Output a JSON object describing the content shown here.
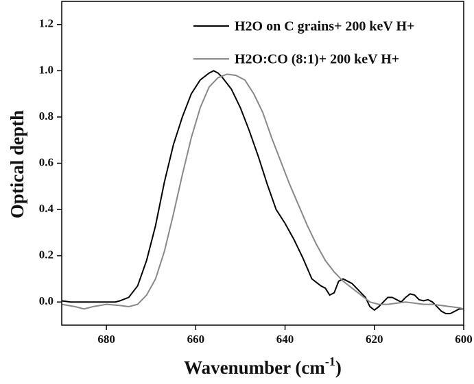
{
  "chart_data": {
    "type": "line",
    "x_label": [
      "Wavenumber (cm",
      "-1",
      ")"
    ],
    "y_label": "Optical depth",
    "xlim": [
      690,
      600
    ],
    "xticks": [
      680,
      660,
      640,
      620,
      600
    ],
    "ylim": [
      -0.1,
      1.3
    ],
    "yticks": [
      {
        "value": 0,
        "label": "0.0"
      },
      0.2,
      0.4,
      0.6,
      0.8,
      {
        "value": 1,
        "label": "1.0"
      },
      1.2
    ],
    "legend": "top-right",
    "series": [
      {
        "name": "H2O on C grains+ 200 keV H+",
        "color": "#000000",
        "x": [
          690,
          688,
          686,
          684,
          682,
          680,
          678,
          677,
          675,
          673,
          671,
          669,
          667,
          665,
          663,
          661,
          659,
          657,
          656,
          655,
          654,
          652,
          650,
          648,
          646,
          644,
          642,
          640,
          638,
          636,
          634,
          632,
          631,
          630,
          629,
          628,
          627,
          626,
          625,
          624,
          623,
          622,
          621,
          620,
          619,
          618,
          617,
          616,
          615,
          614,
          613,
          612,
          611,
          610,
          609,
          608,
          607,
          606,
          605,
          604,
          603,
          602,
          601,
          600
        ],
        "values": [
          0.005,
          0,
          0,
          0,
          0,
          0,
          0,
          0.005,
          0.02,
          0.07,
          0.18,
          0.33,
          0.52,
          0.68,
          0.8,
          0.9,
          0.96,
          0.99,
          1.0,
          0.99,
          0.97,
          0.92,
          0.84,
          0.74,
          0.63,
          0.51,
          0.4,
          0.34,
          0.27,
          0.19,
          0.1,
          0.07,
          0.06,
          0.03,
          0.04,
          0.09,
          0.1,
          0.09,
          0.08,
          0.06,
          0.04,
          0.02,
          -0.02,
          -0.035,
          -0.02,
          0,
          0.02,
          0.02,
          0.01,
          0,
          0.02,
          0.035,
          0.03,
          0.01,
          0.005,
          0.01,
          0,
          -0.02,
          -0.04,
          -0.05,
          -0.05,
          -0.04,
          -0.03,
          -0.03
        ]
      },
      {
        "name": "H2O:CO (8:1)+ 200 keV H+",
        "color": "#888888",
        "x": [
          690,
          687,
          685,
          683,
          680,
          677,
          675,
          673,
          671,
          669,
          667,
          665,
          663,
          661,
          659,
          657,
          655,
          653,
          651,
          649,
          647,
          645,
          643,
          641,
          639,
          637,
          635,
          633,
          631,
          629,
          627,
          625,
          623,
          621,
          619,
          617,
          615,
          613,
          611,
          609,
          607,
          605,
          603,
          601,
          600
        ],
        "values": [
          -0.01,
          -0.02,
          -0.03,
          -0.02,
          -0.01,
          -0.015,
          -0.02,
          -0.01,
          0.03,
          0.1,
          0.22,
          0.38,
          0.55,
          0.71,
          0.84,
          0.93,
          0.97,
          0.985,
          0.98,
          0.96,
          0.9,
          0.82,
          0.71,
          0.61,
          0.51,
          0.42,
          0.33,
          0.25,
          0.18,
          0.13,
          0.09,
          0.06,
          0.03,
          0,
          -0.01,
          -0.01,
          -0.005,
          0,
          -0.005,
          -0.01,
          -0.01,
          -0.015,
          -0.02,
          -0.025,
          -0.03
        ]
      }
    ]
  }
}
